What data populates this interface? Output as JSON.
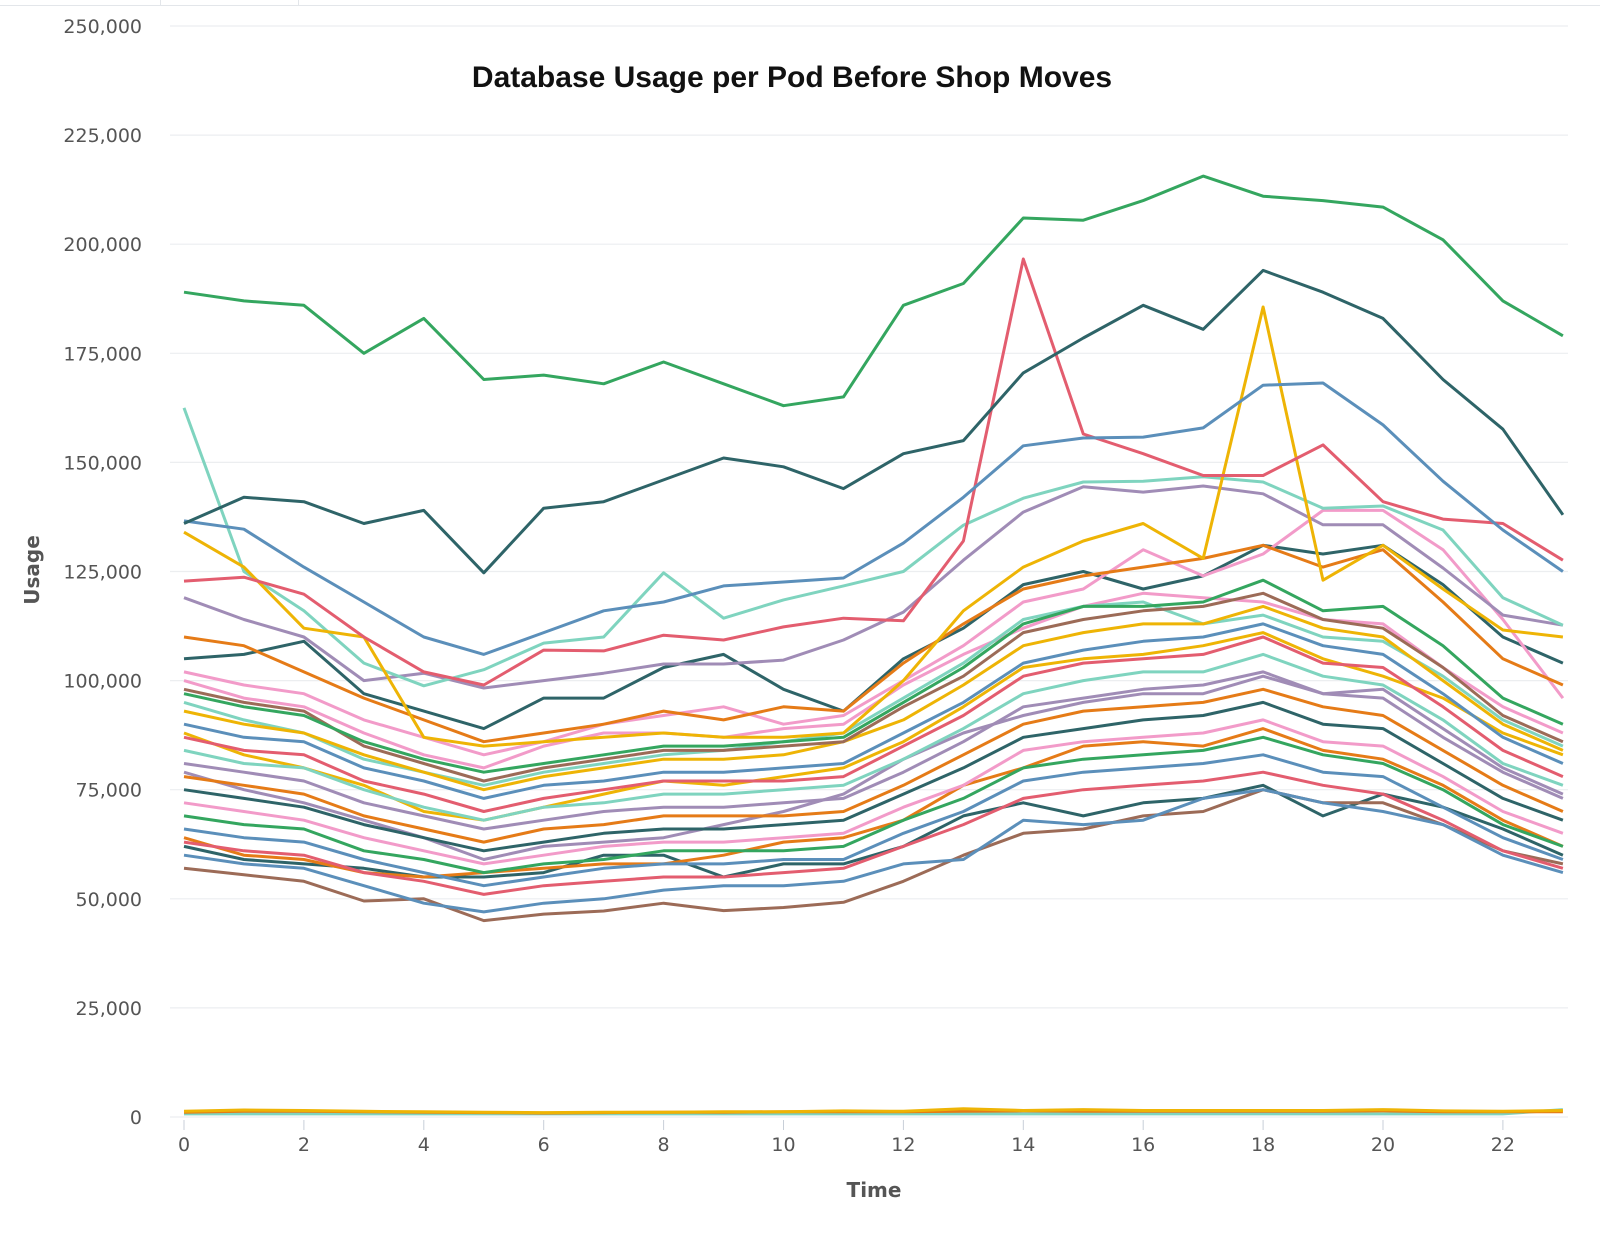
{
  "chart_data": {
    "type": "line",
    "title": "Database Usage per Pod Before Shop Moves",
    "xlabel": "Time",
    "ylabel": "Usage",
    "x": [
      0,
      1,
      2,
      3,
      4,
      5,
      6,
      7,
      8,
      9,
      10,
      11,
      12,
      13,
      14,
      15,
      16,
      17,
      18,
      19,
      20,
      21,
      22,
      23
    ],
    "xticks": [
      "0",
      "2",
      "4",
      "6",
      "8",
      "10",
      "12",
      "14",
      "16",
      "18",
      "20",
      "22"
    ],
    "xtick_values": [
      0,
      2,
      4,
      6,
      8,
      10,
      12,
      14,
      16,
      18,
      20,
      22
    ],
    "xlim": [
      0,
      23
    ],
    "ylim": [
      0,
      250000
    ],
    "yticks": [
      "0",
      "25,000",
      "50,000",
      "75,000",
      "100,000",
      "125,000",
      "150,000",
      "175,000",
      "200,000",
      "225,000",
      "250,000"
    ],
    "ytick_values": [
      0,
      25000,
      50000,
      75000,
      100000,
      125000,
      150000,
      175000,
      200000,
      225000,
      250000
    ],
    "grid": "horizontal",
    "legend": "none",
    "series": [
      {
        "color": "#34a65f",
        "values": [
          189000,
          187000,
          186000,
          175000,
          183000,
          169000,
          170000,
          168000,
          173000,
          168000,
          163000,
          165000,
          186000,
          191000,
          206000,
          205500,
          210000,
          215600,
          211000,
          210000,
          208500,
          201000,
          187000,
          179000
        ]
      },
      {
        "color": "#2e6468",
        "values": [
          136000,
          142000,
          141000,
          136000,
          139000,
          124700,
          139500,
          141000,
          146000,
          151000,
          149000,
          144000,
          152000,
          155000,
          170500,
          178500,
          186000,
          180500,
          194000,
          189000,
          183000,
          169000,
          157600,
          138000
        ]
      },
      {
        "color": "#5b8fba",
        "values": [
          136600,
          134700,
          126000,
          118000,
          110000,
          106000,
          111000,
          116000,
          118000,
          121700,
          122600,
          123500,
          131500,
          142000,
          153800,
          155600,
          155800,
          157900,
          167700,
          168200,
          158600,
          145700,
          134500,
          125000
        ]
      },
      {
        "color": "#e35d6f",
        "values": [
          122800,
          123700,
          119800,
          110000,
          102000,
          99000,
          107000,
          106800,
          110400,
          109300,
          112300,
          114300,
          113700,
          132000,
          196600,
          156500,
          152000,
          147000,
          147000,
          154000,
          141000,
          137000,
          136000,
          127600
        ]
      },
      {
        "color": "#eeb405",
        "values": [
          134000,
          126000,
          112000,
          110000,
          87000,
          85000,
          86000,
          87000,
          88000,
          87000,
          87000,
          88000,
          100000,
          116000,
          126000,
          132000,
          136000,
          128000,
          185600,
          123000,
          131000,
          121000,
          111600,
          110000
        ]
      },
      {
        "color": "#7fd4bf",
        "values": [
          162500,
          125000,
          116000,
          104000,
          98800,
          102500,
          108600,
          110000,
          124700,
          114300,
          118500,
          121700,
          125000,
          135600,
          141800,
          145500,
          145700,
          146700,
          145500,
          139500,
          140000,
          134500,
          119000,
          112700
        ]
      },
      {
        "color": "#a08cb6",
        "values": [
          119000,
          114000,
          110000,
          100000,
          101700,
          98300,
          100000,
          101700,
          103800,
          103800,
          104700,
          109300,
          115700,
          127600,
          138600,
          144400,
          143200,
          144600,
          142800,
          135700,
          135700,
          125800,
          115000,
          112700
        ]
      },
      {
        "color": "#e57b17",
        "values": [
          110000,
          108000,
          102000,
          96000,
          91000,
          86000,
          88000,
          90000,
          93000,
          91000,
          94000,
          93000,
          104000,
          113000,
          121000,
          124000,
          126000,
          128000,
          131000,
          126000,
          130000,
          118000,
          105000,
          99000
        ]
      },
      {
        "color": "#f29bc9",
        "values": [
          102000,
          99000,
          97000,
          91000,
          87000,
          83000,
          86000,
          90000,
          92000,
          94000,
          90000,
          92000,
          100000,
          108000,
          118000,
          121000,
          130000,
          124000,
          129000,
          139000,
          139000,
          130000,
          114000,
          96000
        ]
      },
      {
        "color": "#2e6468",
        "values": [
          105000,
          106000,
          109000,
          97000,
          93000,
          89000,
          96000,
          96000,
          103000,
          106000,
          98000,
          93000,
          105000,
          112000,
          122000,
          125000,
          121000,
          124000,
          131000,
          129000,
          131000,
          122000,
          110000,
          104000
        ]
      },
      {
        "color": "#34a65f",
        "values": [
          97000,
          94000,
          92000,
          86000,
          82000,
          79000,
          81000,
          83000,
          85000,
          85000,
          86000,
          87000,
          95000,
          103000,
          113000,
          117000,
          117000,
          118000,
          123000,
          116000,
          117000,
          108000,
          96000,
          90000
        ]
      },
      {
        "color": "#9c6b57",
        "values": [
          98000,
          95000,
          93000,
          85000,
          81000,
          77000,
          80000,
          82000,
          84000,
          84000,
          85000,
          86000,
          94000,
          101000,
          111000,
          114000,
          116000,
          117000,
          120000,
          114000,
          112000,
          103000,
          92000,
          86000
        ]
      },
      {
        "color": "#eeb405",
        "values": [
          93000,
          90000,
          88000,
          83000,
          79000,
          75000,
          78000,
          80000,
          82000,
          82000,
          83000,
          86000,
          91000,
          99000,
          108000,
          111000,
          113000,
          113000,
          117000,
          112000,
          110000,
          100000,
          90000,
          84000
        ]
      },
      {
        "color": "#5b8fba",
        "values": [
          90000,
          87000,
          86000,
          80000,
          77000,
          73000,
          76000,
          77000,
          79000,
          79000,
          80000,
          81000,
          88000,
          95000,
          104000,
          107000,
          109000,
          110000,
          113000,
          108000,
          106000,
          97000,
          87000,
          81000
        ]
      },
      {
        "color": "#e35d6f",
        "values": [
          87000,
          84000,
          83000,
          77000,
          74000,
          70000,
          73000,
          75000,
          77000,
          77000,
          77000,
          78000,
          85000,
          92000,
          101000,
          104000,
          105000,
          106000,
          110000,
          104000,
          103000,
          94000,
          84000,
          78000
        ]
      },
      {
        "color": "#7fd4bf",
        "values": [
          84000,
          81000,
          80000,
          75000,
          71000,
          68000,
          71000,
          72000,
          74000,
          74000,
          75000,
          76000,
          82000,
          89000,
          97000,
          100000,
          102000,
          102000,
          106000,
          101000,
          99000,
          91000,
          81000,
          76000
        ]
      },
      {
        "color": "#a08cb6",
        "values": [
          81000,
          79000,
          77000,
          72000,
          69000,
          66000,
          68000,
          70000,
          71000,
          71000,
          72000,
          73000,
          79000,
          86000,
          94000,
          96000,
          98000,
          99000,
          102000,
          97000,
          96000,
          87000,
          79000,
          73000
        ]
      },
      {
        "color": "#e57b17",
        "values": [
          78000,
          76000,
          74000,
          69000,
          66000,
          63000,
          66000,
          67000,
          69000,
          69000,
          69000,
          70000,
          76000,
          83000,
          90000,
          93000,
          94000,
          95000,
          98000,
          94000,
          92000,
          84000,
          76000,
          70000
        ]
      },
      {
        "color": "#2e6468",
        "values": [
          75000,
          73000,
          71000,
          67000,
          64000,
          61000,
          63000,
          65000,
          66000,
          66000,
          67000,
          68000,
          74000,
          80000,
          87000,
          89000,
          91000,
          92000,
          95000,
          90000,
          89000,
          81000,
          73000,
          68000
        ]
      },
      {
        "color": "#f29bc9",
        "values": [
          72000,
          70000,
          68000,
          64000,
          61000,
          58000,
          60000,
          62000,
          63000,
          63000,
          64000,
          65000,
          71000,
          76000,
          84000,
          86000,
          87000,
          88000,
          91000,
          86000,
          85000,
          78000,
          70000,
          65000
        ]
      },
      {
        "color": "#34a65f",
        "values": [
          69000,
          67000,
          66000,
          61000,
          59000,
          56000,
          58000,
          59000,
          61000,
          61000,
          61000,
          62000,
          68000,
          73000,
          80000,
          82000,
          83000,
          84000,
          87000,
          83000,
          81000,
          75000,
          67000,
          62000
        ]
      },
      {
        "color": "#5b8fba",
        "values": [
          66000,
          64000,
          63000,
          59000,
          56000,
          53000,
          55000,
          57000,
          58000,
          58000,
          59000,
          59000,
          65000,
          70000,
          77000,
          79000,
          80000,
          81000,
          83000,
          79000,
          78000,
          71000,
          64000,
          59000
        ]
      },
      {
        "color": "#e35d6f",
        "values": [
          63000,
          61000,
          60000,
          56000,
          54000,
          51000,
          53000,
          54000,
          55000,
          55000,
          56000,
          57000,
          62000,
          67000,
          73000,
          75000,
          76000,
          77000,
          79000,
          76000,
          74000,
          68000,
          61000,
          57000
        ]
      },
      {
        "color": "#5b8fba",
        "values": [
          60000,
          58000,
          57000,
          53000,
          49000,
          47000,
          49000,
          50000,
          52000,
          53000,
          53000,
          54000,
          58000,
          59000,
          68000,
          67000,
          68000,
          73000,
          75000,
          72000,
          70000,
          67000,
          60000,
          56000
        ]
      },
      {
        "color": "#9c6b57",
        "values": [
          57000,
          55500,
          54000,
          49500,
          50000,
          45000,
          46500,
          47200,
          49000,
          47300,
          48000,
          49200,
          54000,
          60000,
          65000,
          66000,
          69000,
          70000,
          75000,
          72000,
          72000,
          67000,
          61000,
          58000
        ]
      },
      {
        "color": "#eeb405",
        "values": [
          88000,
          83000,
          80000,
          76000,
          70000,
          68000,
          71000,
          74000,
          77000,
          76000,
          78000,
          80000,
          86000,
          94000,
          103000,
          105000,
          106000,
          108000,
          111000,
          105000,
          101000,
          96000,
          88000,
          83000
        ]
      },
      {
        "color": "#e57b17",
        "values": [
          64000,
          60000,
          59000,
          56000,
          55000,
          56000,
          57000,
          58000,
          58000,
          60000,
          63000,
          64000,
          68000,
          76000,
          80000,
          85000,
          86000,
          85000,
          89000,
          84000,
          82000,
          76000,
          68000,
          62000
        ]
      },
      {
        "color": "#7fd4bf",
        "values": [
          95000,
          91000,
          88000,
          82000,
          79000,
          76000,
          79000,
          81000,
          83000,
          84000,
          86000,
          88000,
          96000,
          104000,
          114000,
          117000,
          118000,
          113000,
          115000,
          110000,
          109000,
          101000,
          91000,
          85000
        ]
      },
      {
        "color": "#2e6468",
        "values": [
          62000,
          59000,
          58000,
          57000,
          55000,
          55000,
          56000,
          60000,
          60000,
          55000,
          58000,
          58000,
          62000,
          69000,
          72000,
          69000,
          72000,
          73000,
          76000,
          69000,
          74000,
          71000,
          66000,
          60000
        ]
      },
      {
        "color": "#a08cb6",
        "values": [
          79000,
          75000,
          72000,
          68000,
          64000,
          59000,
          62000,
          63000,
          64000,
          67000,
          70000,
          74000,
          82000,
          88000,
          92000,
          95000,
          97000,
          97000,
          101000,
          97000,
          98000,
          89000,
          80000,
          74000
        ]
      },
      {
        "color": "#f29bc9",
        "values": [
          100000,
          96000,
          94000,
          88000,
          83000,
          80000,
          85000,
          88000,
          88000,
          87000,
          89000,
          90000,
          99000,
          106000,
          112000,
          117000,
          120000,
          119000,
          118000,
          114000,
          113000,
          103000,
          94000,
          88000
        ]
      },
      {
        "color": "#eeb405",
        "values": [
          1300,
          1600,
          1500,
          1300,
          1200,
          1100,
          1000,
          1100,
          1100,
          1200,
          1200,
          1400,
          1300,
          1900,
          1500,
          1700,
          1500,
          1500,
          1500,
          1500,
          1700,
          1400,
          1300,
          1500
        ]
      },
      {
        "color": "#e57b17",
        "values": [
          1100,
          1300,
          1300,
          1200,
          1100,
          1000,
          900,
          1000,
          1100,
          1100,
          1200,
          1200,
          1200,
          1300,
          1400,
          1300,
          1300,
          1300,
          1300,
          1300,
          1400,
          1200,
          1200,
          1200
        ]
      },
      {
        "color": "#7fd4bf",
        "values": [
          700,
          700,
          700,
          700,
          700,
          700,
          700,
          700,
          700,
          700,
          700,
          700,
          700,
          700,
          700,
          700,
          700,
          700,
          700,
          700,
          700,
          700,
          700,
          1700
        ]
      }
    ]
  }
}
